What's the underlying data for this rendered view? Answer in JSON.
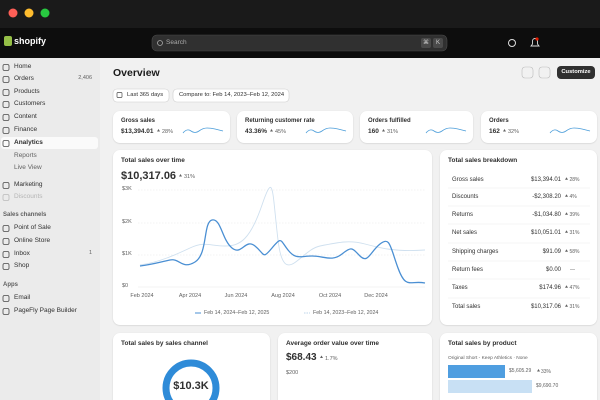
{
  "topbar": {
    "logo": "shopify",
    "search": "Search",
    "shortcut": [
      "⌘",
      "K"
    ]
  },
  "nav": [
    {
      "label": "Home"
    },
    {
      "label": "Orders",
      "badge": "2,406"
    },
    {
      "label": "Products"
    },
    {
      "label": "Customers"
    },
    {
      "label": "Content"
    },
    {
      "label": "Finance"
    },
    {
      "label": "Analytics"
    },
    {
      "label": "Reports"
    },
    {
      "label": "Live View"
    },
    {
      "label": "Marketing"
    },
    {
      "label": "Discounts"
    }
  ],
  "sales_channels": {
    "heading": "Sales channels",
    "items": [
      {
        "label": "Point of Sale"
      },
      {
        "label": "Online Store"
      },
      {
        "label": "Inbox",
        "badge": "1"
      },
      {
        "label": "Shop"
      }
    ]
  },
  "apps": {
    "heading": "Apps",
    "items": [
      {
        "label": "Email"
      },
      {
        "label": "PageFly Page Builder"
      }
    ]
  },
  "page": {
    "title": "Overview",
    "customize": "Customize",
    "date_range": "Last 365 days",
    "compare": "Compare to: Feb 14, 2023–Feb 12, 2024"
  },
  "kpis": [
    {
      "label": "Gross sales",
      "value": "$13,394.01",
      "change": "28%"
    },
    {
      "label": "Returning customer rate",
      "value": "43.36%",
      "change": "45%"
    },
    {
      "label": "Orders fulfilled",
      "value": "160",
      "change": "31%"
    },
    {
      "label": "Orders",
      "value": "162",
      "change": "32%"
    }
  ],
  "sales_chart": {
    "title": "Total sales over time",
    "value": "$10,317.06",
    "change": "31%",
    "yticks": [
      "$3K",
      "$2K",
      "$1K",
      "$0"
    ],
    "xticks": [
      "Feb 2024",
      "Apr 2024",
      "Jun 2024",
      "Aug 2024",
      "Oct 2024",
      "Dec 2024"
    ],
    "legend": [
      "Feb 14, 2024–Feb 12, 2025",
      "Feb 14, 2023–Feb 12, 2024"
    ]
  },
  "breakdown": {
    "title": "Total sales breakdown",
    "rows": [
      {
        "label": "Gross sales",
        "value": "$13,394.01",
        "change": "28%"
      },
      {
        "label": "Discounts",
        "value": "-$2,308.20",
        "change": "4%"
      },
      {
        "label": "Returns",
        "value": "-$1,034.80",
        "change": "39%"
      },
      {
        "label": "Net sales",
        "value": "$10,051.01",
        "change": "31%"
      },
      {
        "label": "Shipping charges",
        "value": "$91.09",
        "change": "58%"
      },
      {
        "label": "Return fees",
        "value": "$0.00",
        "change": "—"
      },
      {
        "label": "Taxes",
        "value": "$174.96",
        "change": "47%"
      },
      {
        "label": "Total sales",
        "value": "$10,317.06",
        "change": "31%"
      }
    ]
  },
  "channel_card": {
    "title": "Total sales by sales channel",
    "center": "$10.3K"
  },
  "aov_card": {
    "title": "Average order value over time",
    "value": "$68.43",
    "change": "1.7%",
    "ytick": "$200"
  },
  "product_card": {
    "title": "Total sales by product",
    "header": "Original Short - Keep Athletics · None",
    "bars": [
      {
        "value": "$5,605.29",
        "change": "33%"
      },
      {
        "value": "$9,690.70"
      }
    ]
  }
}
